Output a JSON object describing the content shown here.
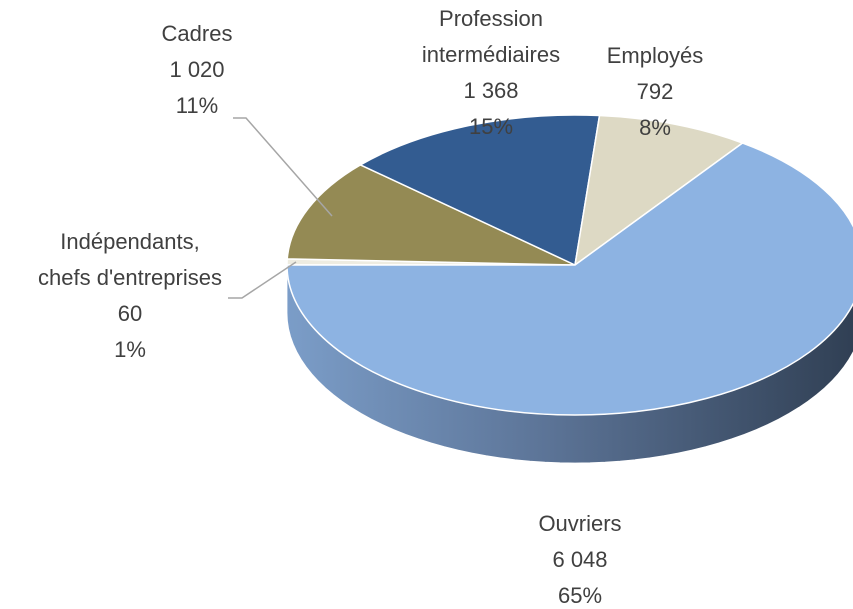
{
  "chart_data": {
    "type": "pie",
    "categories": [
      "Indépendants,\nchefs d'entreprises",
      "Cadres",
      "Profession\nintermédiaires",
      "Employés",
      "Ouvriers"
    ],
    "values": [
      60,
      1020,
      1368,
      792,
      6048
    ],
    "value_labels": [
      "60",
      "1 020",
      "1 368",
      "792",
      "6 048"
    ],
    "percent_labels": [
      "1%",
      "11%",
      "15%",
      "8%",
      "65%"
    ],
    "colors": [
      "#eeece1",
      "#948a54",
      "#335c91",
      "#ddd9c4",
      "#8db3e2"
    ]
  }
}
